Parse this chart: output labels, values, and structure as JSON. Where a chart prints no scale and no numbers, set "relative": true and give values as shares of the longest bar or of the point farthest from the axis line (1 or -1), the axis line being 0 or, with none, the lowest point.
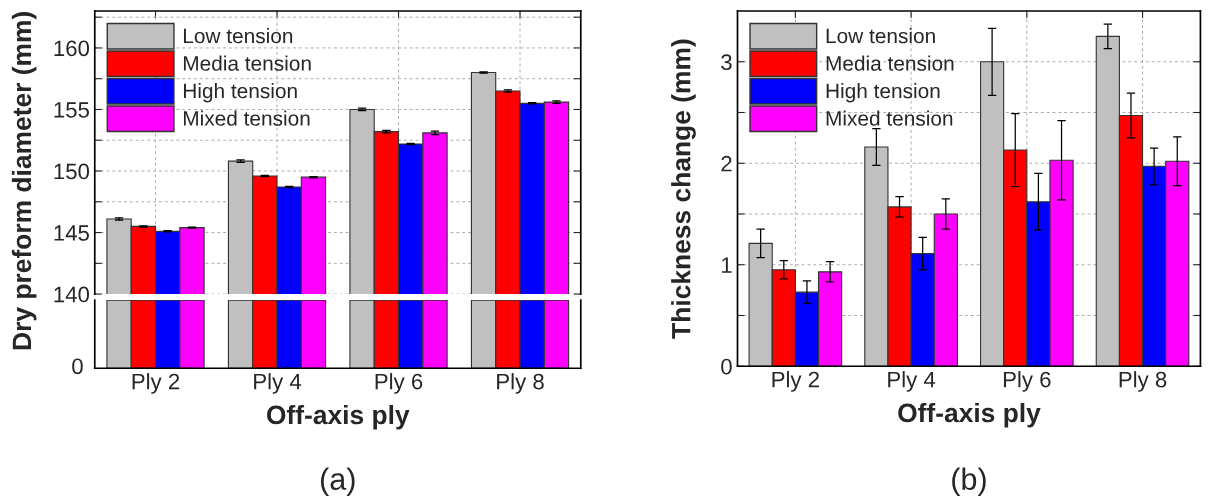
{
  "chart_data": [
    {
      "type": "bar",
      "ylabel": "Dry preform diameter (mm)",
      "categories": [
        null,
        null,
        null,
        null
      ],
      "ylim": [
        140,
        163
      ],
      "yticks": [
        140,
        {
          "value": 142.5,
          "label": null
        },
        145,
        {
          "value": 147.5,
          "label": null
        },
        150,
        {
          "value": 152.5,
          "label": null
        },
        155,
        {
          "value": 157.5,
          "label": null
        },
        160,
        {
          "value": 162.5,
          "label": null
        }
      ],
      "grid": true,
      "legend": "top left",
      "tick_labels": "y",
      "annotations": [
        "(a)"
      ],
      "series": [
        {
          "name": "Low tension",
          "color": "#c0c0c0",
          "values": [
            146.1,
            150.8,
            155.0,
            158.0
          ],
          "errors": [
            0.1,
            0.1,
            0.1,
            0.05
          ]
        },
        {
          "name": "Media tension",
          "color": "#ff0000",
          "values": [
            145.5,
            149.6,
            153.2,
            156.5
          ],
          "errors": [
            0.05,
            0.05,
            0.1,
            0.1
          ]
        },
        {
          "name": "High tension",
          "color": "#0000ff",
          "values": [
            145.1,
            148.7,
            152.2,
            155.5
          ],
          "errors": [
            0.05,
            0.05,
            0.05,
            0.05
          ]
        },
        {
          "name": "Mixed tension",
          "color": "#ff00ff",
          "values": [
            145.4,
            149.5,
            153.1,
            155.6
          ],
          "errors": [
            0.05,
            0.05,
            0.15,
            0.1
          ]
        }
      ]
    },
    {
      "type": "bar",
      "xlabel": "Off-axis ply",
      "categories": [
        "Ply 2",
        "Ply 4",
        "Ply 6",
        "Ply 8"
      ],
      "relative": true,
      "grid": "x",
      "annotations": [
        "0"
      ],
      "series": [
        {
          "color": "#c0c0c0",
          "values": [
            1,
            1,
            1,
            1
          ]
        },
        {
          "color": "#ff0000",
          "values": [
            1,
            1,
            1,
            1
          ]
        },
        {
          "color": "#0000ff",
          "values": [
            1,
            1,
            1,
            1
          ]
        },
        {
          "color": "#ff00ff",
          "values": [
            1,
            1,
            1,
            1
          ]
        }
      ]
    },
    {
      "type": "bar",
      "xlabel": "Off-axis ply",
      "ylabel": "Thickness change (mm)",
      "categories": [
        "Ply 2",
        "Ply 4",
        "Ply 6",
        "Ply 8"
      ],
      "ylim": [
        0,
        3.5
      ],
      "yticks": [
        0,
        {
          "value": 0.5,
          "label": null
        },
        1,
        {
          "value": 1.5,
          "label": null
        },
        2,
        {
          "value": 2.5,
          "label": null
        },
        3
      ],
      "grid": true,
      "legend": "top left",
      "annotations": [
        "(b)"
      ],
      "series": [
        {
          "name": "Low tension",
          "color": "#c0c0c0",
          "values": [
            1.21,
            2.16,
            3.0,
            3.25
          ],
          "errors": [
            0.14,
            0.18,
            0.33,
            0.12
          ]
        },
        {
          "name": "Media tension",
          "color": "#ff0000",
          "values": [
            0.95,
            1.57,
            2.13,
            2.47
          ],
          "errors": [
            0.09,
            0.1,
            0.36,
            0.22
          ]
        },
        {
          "name": "High tension",
          "color": "#0000ff",
          "values": [
            0.73,
            1.11,
            1.62,
            1.97
          ],
          "errors": [
            0.11,
            0.16,
            0.28,
            0.18
          ]
        },
        {
          "name": "Mixed tension",
          "color": "#ff00ff",
          "values": [
            0.93,
            1.5,
            2.03,
            2.02
          ],
          "errors": [
            0.1,
            0.15,
            0.39,
            0.24
          ]
        }
      ]
    }
  ]
}
